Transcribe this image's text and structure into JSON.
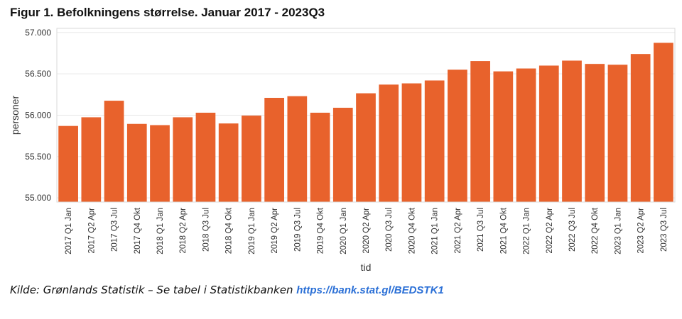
{
  "figure": {
    "title": "Figur 1. Befolkningens størrelse. Januar 2017 - 2023Q3"
  },
  "source": {
    "text": "Kilde: Grønlands Statistik – Se tabel i Statistikbanken",
    "link_text": "https://bank.stat.gl/BEDSTK1"
  },
  "colors": {
    "bar": "#e8622c",
    "grid": "#e6e6e6",
    "link": "#2a6fd6"
  },
  "chart_data": {
    "type": "bar",
    "xlabel": "tid",
    "ylabel": "personer",
    "ylim": [
      54950,
      57050
    ],
    "yticks": [
      55000,
      55500,
      56000,
      56500,
      57000
    ],
    "ytick_labels": [
      "55.000",
      "55.500",
      "56.000",
      "56.500",
      "57.000"
    ],
    "grid": true,
    "legend": "none",
    "categories": [
      "2017 Q1 Jan",
      "2017 Q2 Apr",
      "2017 Q3 Jul",
      "2017 Q4 Okt",
      "2018 Q1 Jan",
      "2018 Q2 Apr",
      "2018 Q3 Jul",
      "2018 Q4 Okt",
      "2019 Q1 Jan",
      "2019 Q2 Apr",
      "2019 Q3 Jul",
      "2019 Q4 Okt",
      "2020 Q1 Jan",
      "2020 Q2 Apr",
      "2020 Q3 Jul",
      "2020 Q4 Okt",
      "2021 Q1 Jan",
      "2021 Q2 Apr",
      "2021 Q3 Jul",
      "2021 Q4 Okt",
      "2022 Q1 Jan",
      "2022 Q2 Apr",
      "2022 Q3 Jul",
      "2022 Q4 Okt",
      "2023 Q1 Jan",
      "2023 Q2 Apr",
      "2023 Q3 Jul"
    ],
    "values": [
      55870,
      55975,
      56175,
      55895,
      55880,
      55975,
      56030,
      55900,
      55995,
      56210,
      56230,
      56030,
      56090,
      56265,
      56370,
      56385,
      56420,
      56550,
      56655,
      56530,
      56565,
      56600,
      56660,
      56620,
      56610,
      56740,
      56875
    ]
  }
}
